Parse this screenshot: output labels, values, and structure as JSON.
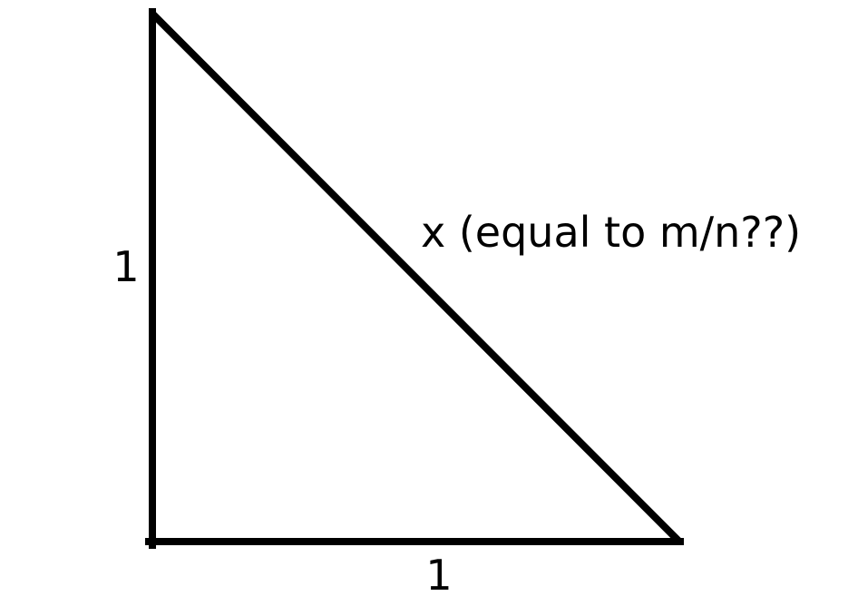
{
  "diagram": {
    "left_leg_label": "1",
    "bottom_leg_label": "1",
    "hypotenuse_label": "x (equal to m/n??)",
    "stroke_color": "#000000",
    "background_color": "#ffffff"
  }
}
